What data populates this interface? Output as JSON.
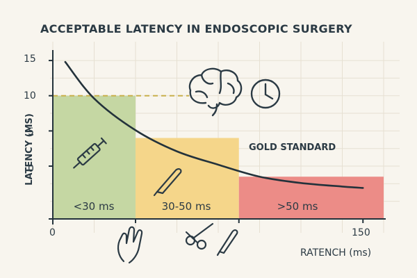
{
  "chart_data": {
    "type": "line",
    "title": "ACCEPTABLE LATENCY IN ENDOSCOPIC SURGERY",
    "ylabel": "LATENCY (MS)",
    "xlabel": "RATENCH (ms)",
    "x_ticks": [
      "0",
      "150"
    ],
    "y_ticks": [
      "0",
      "5",
      "10",
      "15"
    ],
    "ylim": [
      -7.5,
      15.5
    ],
    "xlim": [
      0,
      160
    ],
    "grid": true,
    "series": [
      {
        "x": [
          6,
          20,
          40,
          60,
          80,
          100,
          120,
          140,
          150
        ],
        "y": [
          14.8,
          9.6,
          5.1,
          2.1,
          0.2,
          -1.5,
          -2.4,
          -2.9,
          -3.1
        ]
      }
    ],
    "zones": [
      {
        "label": "<30 ms",
        "x0": 0,
        "x1": 40,
        "top": 10,
        "color": "#c5d7a3"
      },
      {
        "label": "30-50 ms",
        "x0": 40,
        "x1": 90,
        "top": 4,
        "color": "#f5d68a"
      },
      {
        "label": ">50 ms",
        "x0": 90,
        "x1": 160,
        "top": -1.5,
        "color": "#ec8c87"
      }
    ],
    "threshold": {
      "y": 10,
      "color": "#c9b04c"
    },
    "annotations": [
      "GOLD STANDARD"
    ],
    "colors": {
      "curve": "#23323b",
      "text": "#2b3a44",
      "grid": "#e6e0d2"
    },
    "icons": [
      "syringe-icon",
      "scalpel-icon",
      "brain-icon",
      "clock-icon",
      "hand-icon",
      "scissors-icon",
      "scalpel-bottom-icon"
    ]
  }
}
